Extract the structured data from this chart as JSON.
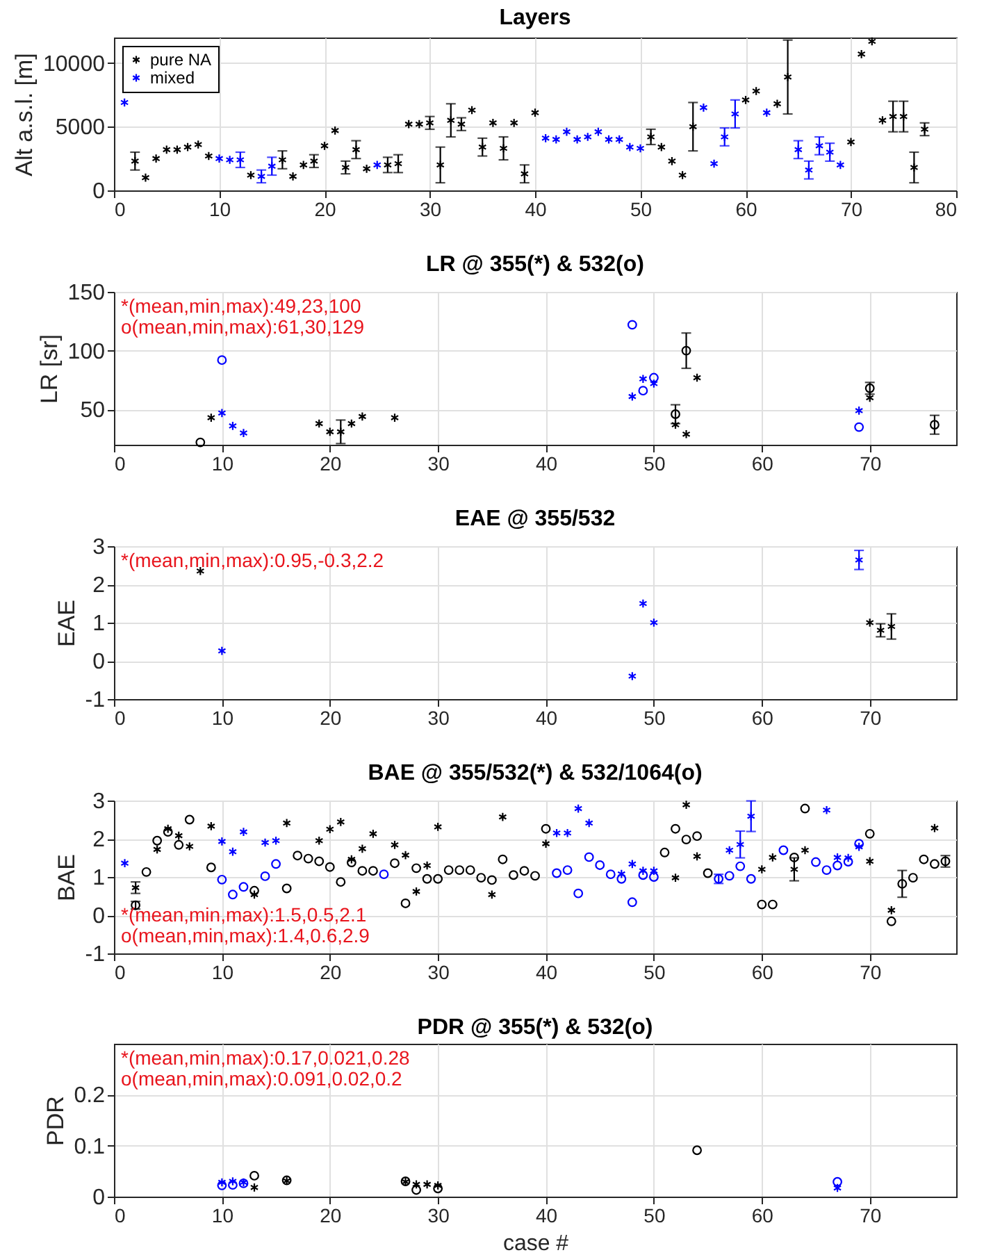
{
  "chart_data": [
    {
      "type": "scatter",
      "title": "Layers",
      "ylabel": "Alt a.s.l. [m]",
      "xlim": [
        0,
        80
      ],
      "xticks": [
        0,
        10,
        20,
        30,
        40,
        50,
        60,
        70,
        80
      ],
      "ylim": [
        0,
        12000
      ],
      "yticks": [
        0,
        5000,
        10000
      ],
      "grid": true,
      "legend": "top left",
      "series": [
        {
          "name": "pure NA",
          "color": "#000000",
          "marker": "cross",
          "x": [
            2,
            3,
            4,
            5,
            6,
            7,
            8,
            9,
            13,
            16,
            17,
            18,
            19,
            20,
            21,
            22,
            23,
            24,
            26,
            27,
            28,
            29,
            30,
            31,
            32,
            33,
            34,
            35,
            36,
            37,
            38,
            39,
            40,
            51,
            52,
            53,
            54,
            55,
            60,
            61,
            63,
            64,
            70,
            71,
            72,
            73,
            74,
            75,
            76,
            77
          ],
          "values": [
            2300,
            1000,
            2500,
            3200,
            3200,
            3400,
            3600,
            2700,
            1200,
            2400,
            1100,
            2000,
            2300,
            3500,
            4700,
            1800,
            3200,
            1700,
            2000,
            2100,
            5200,
            5200,
            5300,
            2000,
            5500,
            5200,
            6300,
            3400,
            5300,
            3300,
            5300,
            1300,
            6100,
            4200,
            3400,
            2300,
            1200,
            5000,
            7100,
            7800,
            6800,
            8900,
            3800,
            10700,
            11700,
            5500,
            5800,
            5800,
            1800,
            4800
          ],
          "errors": [
            700,
            null,
            null,
            null,
            null,
            null,
            null,
            null,
            null,
            700,
            null,
            null,
            500,
            null,
            null,
            500,
            700,
            null,
            600,
            700,
            null,
            null,
            500,
            1400,
            1300,
            500,
            null,
            700,
            null,
            900,
            null,
            700,
            null,
            600,
            null,
            null,
            null,
            1900,
            null,
            null,
            null,
            2900,
            null,
            null,
            null,
            null,
            1200,
            1200,
            1200,
            500
          ]
        },
        {
          "name": "mixed",
          "color": "#0000ff",
          "marker": "cross",
          "x": [
            1,
            10,
            11,
            12,
            14,
            15,
            25,
            41,
            42,
            43,
            44,
            45,
            46,
            47,
            48,
            49,
            50,
            56,
            57,
            58,
            59,
            62,
            65,
            66,
            67,
            68,
            69
          ],
          "values": [
            6900,
            2500,
            2400,
            2400,
            1100,
            1900,
            2000,
            4100,
            4000,
            4600,
            4000,
            4200,
            4600,
            4000,
            4000,
            3400,
            3300,
            6500,
            2100,
            4200,
            6000,
            6100,
            3200,
            1600,
            3500,
            3000,
            2000
          ],
          "errors": [
            null,
            null,
            null,
            600,
            500,
            700,
            null,
            null,
            null,
            null,
            null,
            null,
            null,
            null,
            null,
            null,
            null,
            null,
            null,
            700,
            1100,
            null,
            700,
            700,
            700,
            700,
            null
          ]
        }
      ]
    },
    {
      "type": "scatter",
      "title": "LR @ 355(*) & 532(o)",
      "ylabel": "LR [sr]",
      "xlim": [
        0,
        78
      ],
      "xticks": [
        0,
        10,
        20,
        30,
        40,
        50,
        60,
        70
      ],
      "ylim": [
        20,
        150
      ],
      "yticks": [
        50,
        100,
        150
      ],
      "grid": true,
      "annotations": [
        "*(mean,min,max):49,23,100",
        "o(mean,min,max):61,30,129"
      ],
      "series": [
        {
          "color": "#000000",
          "marker": "cross",
          "x": [
            9,
            19,
            20,
            21,
            22,
            23,
            26,
            52,
            53,
            54,
            70
          ],
          "values": [
            43,
            38,
            31,
            31,
            38,
            44,
            43,
            37,
            29,
            77,
            60
          ],
          "errors": [
            null,
            null,
            null,
            10,
            null,
            null,
            null,
            null,
            null,
            null,
            null
          ]
        },
        {
          "color": "#000000",
          "marker": "circle",
          "x": [
            8,
            52,
            53,
            70,
            76
          ],
          "values": [
            22,
            46,
            100,
            68,
            37
          ],
          "errors": [
            null,
            8,
            15,
            5,
            8
          ]
        },
        {
          "color": "#0000ff",
          "marker": "cross",
          "x": [
            10,
            11,
            12,
            48,
            49,
            50,
            69
          ],
          "values": [
            47,
            36,
            30,
            61,
            76,
            72,
            49
          ]
        },
        {
          "color": "#0000ff",
          "marker": "circle",
          "x": [
            10,
            48,
            49,
            50,
            69
          ],
          "values": [
            92,
            122,
            66,
            77,
            35
          ]
        }
      ]
    },
    {
      "type": "scatter",
      "title": "EAE @ 355/532",
      "ylabel": "EAE",
      "xlim": [
        0,
        78
      ],
      "xticks": [
        0,
        10,
        20,
        30,
        40,
        50,
        60,
        70
      ],
      "ylim": [
        -1,
        3
      ],
      "yticks": [
        -1,
        0,
        1,
        2,
        3
      ],
      "grid": true,
      "annotations": [
        "*(mean,min,max):0.95,-0.3,2.2"
      ],
      "series": [
        {
          "color": "#000000",
          "marker": "cross",
          "x": [
            8,
            70,
            71,
            72
          ],
          "values": [
            2.35,
            1.0,
            0.8,
            0.9
          ],
          "errors": [
            null,
            null,
            0.17,
            0.33
          ]
        },
        {
          "color": "#0000ff",
          "marker": "cross",
          "x": [
            10,
            48,
            49,
            50,
            69
          ],
          "values": [
            0.26,
            -0.4,
            1.5,
            1.0,
            2.64
          ],
          "errors": [
            null,
            null,
            null,
            null,
            0.25
          ]
        }
      ]
    },
    {
      "type": "scatter",
      "title": "BAE @ 355/532(*) & 532/1064(o)",
      "ylabel": "BAE",
      "xlim": [
        0,
        78
      ],
      "xticks": [
        0,
        10,
        20,
        30,
        40,
        50,
        60,
        70
      ],
      "ylim": [
        -1,
        3
      ],
      "yticks": [
        -1,
        0,
        1,
        2,
        3
      ],
      "grid": true,
      "annotations": [
        "*(mean,min,max):1.5,0.5,2.1",
        "o(mean,min,max):1.4,0.6,2.9"
      ],
      "series": [
        {
          "color": "#000000",
          "marker": "cross",
          "x": [
            2,
            4,
            5,
            6,
            7,
            9,
            13,
            16,
            19,
            20,
            21,
            22,
            23,
            24,
            26,
            27,
            28,
            29,
            30,
            35,
            36,
            40,
            52,
            53,
            54,
            60,
            61,
            63,
            64,
            70,
            72,
            76
          ],
          "values": [
            0.72,
            1.72,
            2.26,
            2.08,
            1.8,
            2.33,
            0.54,
            2.41,
            1.95,
            2.25,
            2.44,
            1.46,
            1.74,
            2.13,
            1.84,
            1.57,
            0.62,
            1.3,
            2.31,
            0.54,
            2.57,
            1.87,
            0.98,
            2.89,
            1.54,
            1.2,
            1.51,
            1.2,
            1.7,
            1.41,
            0.13,
            2.28
          ],
          "errors": [
            0.15,
            null,
            null,
            null,
            null,
            null,
            null,
            null,
            null,
            null,
            null,
            null,
            null,
            null,
            null,
            null,
            null,
            null,
            null,
            null,
            null,
            null,
            null,
            null,
            null,
            null,
            null,
            0.3,
            null,
            null,
            null,
            null
          ]
        },
        {
          "color": "#000000",
          "marker": "circle",
          "x": [
            2,
            3,
            4,
            5,
            6,
            7,
            9,
            13,
            16,
            17,
            18,
            19,
            20,
            21,
            22,
            23,
            24,
            26,
            27,
            28,
            29,
            30,
            31,
            32,
            33,
            34,
            35,
            36,
            37,
            38,
            39,
            40,
            51,
            52,
            53,
            54,
            55,
            60,
            61,
            63,
            64,
            70,
            72,
            73,
            74,
            75,
            76,
            77
          ],
          "values": [
            0.26,
            1.13,
            1.95,
            2.18,
            1.84,
            2.5,
            1.25,
            0.64,
            0.7,
            1.56,
            1.48,
            1.41,
            1.26,
            0.87,
            1.38,
            1.16,
            1.16,
            1.36,
            0.31,
            1.23,
            0.95,
            0.95,
            1.18,
            1.18,
            1.18,
            0.98,
            0.92,
            1.46,
            1.05,
            1.16,
            1.03,
            2.26,
            1.64,
            2.26,
            1.98,
            2.07,
            1.1,
            0.28,
            0.28,
            1.51,
            2.79,
            2.13,
            -0.16,
            0.82,
            0.98,
            1.46,
            1.34,
            1.41
          ],
          "errors": [
            0.1,
            null,
            null,
            null,
            null,
            null,
            null,
            null,
            null,
            null,
            null,
            null,
            null,
            null,
            null,
            null,
            null,
            null,
            null,
            null,
            null,
            null,
            null,
            null,
            null,
            null,
            null,
            null,
            null,
            null,
            null,
            null,
            null,
            null,
            null,
            null,
            null,
            null,
            null,
            null,
            null,
            null,
            null,
            0.35,
            null,
            null,
            null,
            0.15
          ]
        },
        {
          "color": "#0000ff",
          "marker": "cross",
          "x": [
            1,
            10,
            11,
            12,
            14,
            15,
            41,
            42,
            43,
            44,
            47,
            48,
            49,
            50,
            57,
            58,
            59,
            66,
            67,
            68,
            69
          ],
          "values": [
            1.36,
            1.93,
            1.66,
            2.18,
            1.9,
            1.95,
            2.15,
            2.15,
            2.79,
            2.41,
            1.08,
            1.34,
            1.16,
            1.16,
            1.7,
            1.85,
            2.59,
            2.75,
            1.51,
            1.5,
            1.79
          ],
          "errors": [
            null,
            null,
            null,
            null,
            null,
            null,
            null,
            null,
            null,
            null,
            null,
            null,
            null,
            null,
            null,
            0.35,
            0.4,
            null,
            null,
            null,
            null
          ]
        },
        {
          "color": "#0000ff",
          "marker": "circle",
          "x": [
            10,
            11,
            12,
            14,
            15,
            25,
            41,
            42,
            43,
            44,
            45,
            46,
            47,
            48,
            49,
            50,
            56,
            57,
            58,
            59,
            62,
            65,
            66,
            67,
            68,
            69
          ],
          "values": [
            0.93,
            0.54,
            0.74,
            1.02,
            1.34,
            1.07,
            1.1,
            1.18,
            0.57,
            1.52,
            1.31,
            1.07,
            0.95,
            0.34,
            1.05,
            1.0,
            0.95,
            1.03,
            1.28,
            0.95,
            1.7,
            1.39,
            1.18,
            1.3,
            1.4,
            1.87
          ],
          "errors": [
            null,
            null,
            null,
            null,
            null,
            null,
            null,
            null,
            null,
            null,
            null,
            null,
            null,
            null,
            null,
            null,
            0.12,
            null,
            null,
            null,
            null,
            null,
            null,
            null,
            null,
            null
          ]
        }
      ]
    },
    {
      "type": "scatter",
      "title": "PDR @ 355(*) & 532(o)",
      "xlabel": "case #",
      "ylabel": "PDR",
      "xlim": [
        0,
        78
      ],
      "xticks": [
        0,
        10,
        20,
        30,
        40,
        50,
        60,
        70
      ],
      "ylim": [
        0,
        0.3
      ],
      "yticks": [
        0,
        0.1,
        0.2
      ],
      "grid": true,
      "annotations": [
        "*(mean,min,max):0.17,0.021,0.28",
        "o(mean,min,max):0.091,0.02,0.2"
      ],
      "series": [
        {
          "color": "#000000",
          "marker": "cross",
          "x": [
            13,
            16,
            27,
            28,
            29,
            30
          ],
          "values": [
            0.018,
            0.031,
            0.029,
            0.024,
            0.024,
            0.022
          ]
        },
        {
          "color": "#000000",
          "marker": "circle",
          "x": [
            13,
            16,
            27,
            28,
            30,
            54
          ],
          "values": [
            0.041,
            0.032,
            0.03,
            0.013,
            0.016,
            0.091
          ]
        },
        {
          "color": "#0000ff",
          "marker": "cross",
          "x": [
            10,
            11,
            12,
            67
          ],
          "values": [
            0.028,
            0.03,
            0.028,
            0.017
          ]
        },
        {
          "color": "#0000ff",
          "marker": "circle",
          "x": [
            10,
            11,
            12,
            67
          ],
          "values": [
            0.022,
            0.023,
            0.026,
            0.029
          ]
        }
      ]
    }
  ]
}
